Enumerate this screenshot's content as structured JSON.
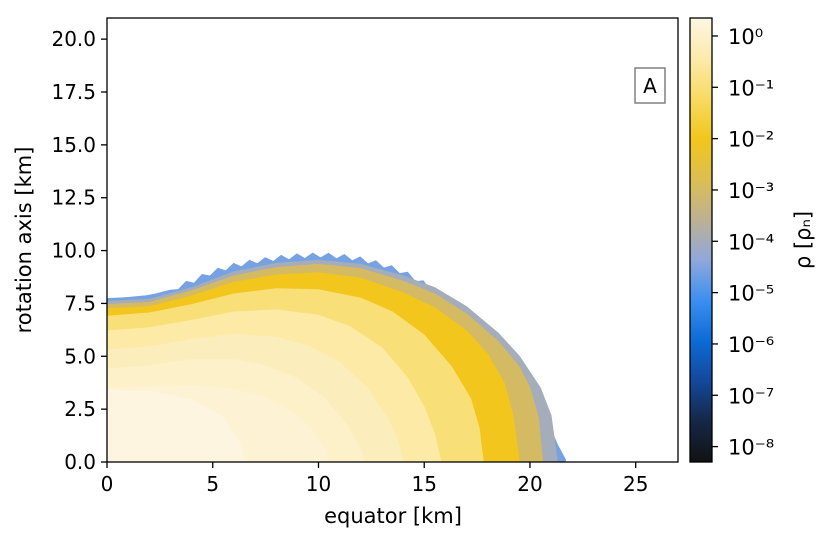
{
  "chart_data": {
    "type": "heatmap",
    "title": "",
    "xlabel": "equator [km]",
    "ylabel": "rotation axis [km]",
    "xlim": [
      0,
      27
    ],
    "ylim": [
      0,
      21
    ],
    "x_ticks": [
      0,
      5,
      10,
      15,
      20,
      25
    ],
    "x_tick_labels": [
      "0",
      "5",
      "10",
      "15",
      "20",
      "25"
    ],
    "y_ticks": [
      0.0,
      2.5,
      5.0,
      7.5,
      10.0,
      12.5,
      15.0,
      17.5,
      20.0
    ],
    "y_tick_labels": [
      "0.0",
      "2.5",
      "5.0",
      "7.5",
      "10.0",
      "12.5",
      "15.0",
      "17.5",
      "20.0"
    ],
    "panel_label": "A",
    "grid": false,
    "colorbar": {
      "label": "ρ [ρₙ]",
      "scale": "log",
      "range_exponents": [
        -8.3,
        0.35
      ],
      "tick_exponents": [
        0,
        -1,
        -2,
        -3,
        -4,
        -5,
        -6,
        -7,
        -8
      ],
      "tick_labels": [
        "10⁰",
        "10⁻¹",
        "10⁻²",
        "10⁻³",
        "10⁻⁴",
        "10⁻⁵",
        "10⁻⁶",
        "10⁻⁷",
        "10⁻⁸"
      ],
      "colors": [
        "#121212",
        "#142746",
        "#13489a",
        "#0c6bd6",
        "#3b8ff0",
        "#8fa8dc",
        "#bdb193",
        "#dcbe52",
        "#f2c61c",
        "#f8da62",
        "#fcebac",
        "#fdf6e2"
      ]
    },
    "surface_boundary_km": {
      "x": [
        0,
        1,
        2,
        3,
        4,
        5,
        6,
        7,
        8,
        9,
        10,
        11,
        12,
        13,
        14,
        15,
        16,
        17,
        18,
        19,
        20,
        21,
        21.4,
        21.6,
        21.7
      ],
      "y": [
        7.75,
        7.8,
        7.9,
        8.15,
        8.55,
        9.0,
        9.3,
        9.5,
        9.65,
        9.75,
        9.8,
        9.75,
        9.6,
        9.35,
        9.0,
        8.45,
        7.7,
        6.75,
        5.6,
        4.3,
        2.85,
        1.5,
        0.8,
        0.35,
        0
      ]
    },
    "density_contours": [
      {
        "log10_rho": -4.0,
        "x": [
          0,
          2,
          4,
          6,
          8,
          10,
          12,
          14,
          15.5,
          17,
          18.5,
          19.5,
          20.5,
          21.0,
          21.3
        ],
        "y": [
          7.6,
          7.7,
          8.25,
          9.0,
          9.4,
          9.55,
          9.35,
          8.8,
          8.25,
          7.35,
          6.1,
          5.0,
          3.5,
          2.2,
          0
        ]
      },
      {
        "log10_rho": -3.0,
        "x": [
          0,
          2,
          4,
          6,
          8,
          10,
          12,
          14,
          15.5,
          17,
          18.5,
          19.5,
          20.0,
          20.4,
          20.6
        ],
        "y": [
          7.45,
          7.55,
          8.1,
          8.8,
          9.2,
          9.35,
          9.15,
          8.55,
          7.95,
          7.0,
          5.7,
          4.5,
          3.5,
          2.1,
          0
        ]
      },
      {
        "log10_rho": -2.0,
        "x": [
          0,
          2,
          4,
          6,
          8,
          10,
          12,
          14,
          15.5,
          17,
          18,
          18.8,
          19.2,
          19.5
        ],
        "y": [
          7.25,
          7.35,
          7.85,
          8.5,
          8.85,
          8.95,
          8.7,
          8.0,
          7.3,
          6.2,
          5.1,
          3.7,
          2.2,
          0
        ]
      },
      {
        "log10_rho": -1.0,
        "x": [
          0,
          2,
          4,
          6,
          8,
          10,
          12,
          13.5,
          15,
          16.3,
          17.2,
          17.6,
          17.8
        ],
        "y": [
          6.9,
          7.05,
          7.45,
          7.95,
          8.2,
          8.15,
          7.75,
          7.1,
          6.0,
          4.5,
          3.0,
          1.6,
          0
        ]
      },
      {
        "log10_rho": -0.5,
        "x": [
          0,
          2,
          4,
          6,
          8,
          10,
          11.5,
          13,
          14.2,
          15.0,
          15.5,
          15.8
        ],
        "y": [
          6.2,
          6.35,
          6.7,
          7.1,
          7.2,
          6.95,
          6.4,
          5.4,
          4.0,
          2.6,
          1.3,
          0
        ]
      },
      {
        "log10_rho": -0.2,
        "x": [
          0,
          2,
          4,
          6,
          8,
          9.5,
          11,
          12.3,
          13.3,
          13.8,
          14.0
        ],
        "y": [
          5.3,
          5.45,
          5.8,
          6.05,
          5.9,
          5.5,
          4.7,
          3.5,
          2.0,
          0.9,
          0
        ]
      },
      {
        "log10_rho": 0.0,
        "x": [
          0,
          2,
          4,
          6,
          7.5,
          9,
          10.3,
          11.3,
          11.9,
          12.2
        ],
        "y": [
          4.4,
          4.55,
          4.85,
          4.85,
          4.55,
          3.95,
          3.0,
          1.8,
          0.8,
          0
        ]
      },
      {
        "log10_rho": 0.15,
        "x": [
          0,
          2,
          4,
          6,
          7.5,
          8.8,
          9.8,
          10.3,
          10.5
        ],
        "y": [
          3.5,
          3.55,
          3.6,
          3.45,
          3.05,
          2.35,
          1.4,
          0.6,
          0
        ]
      },
      {
        "log10_rho": 0.3,
        "x": [
          0,
          2,
          4,
          5.5,
          6.3,
          6.5
        ],
        "y": [
          3.4,
          3.35,
          2.95,
          2.1,
          0.9,
          0
        ]
      }
    ]
  }
}
